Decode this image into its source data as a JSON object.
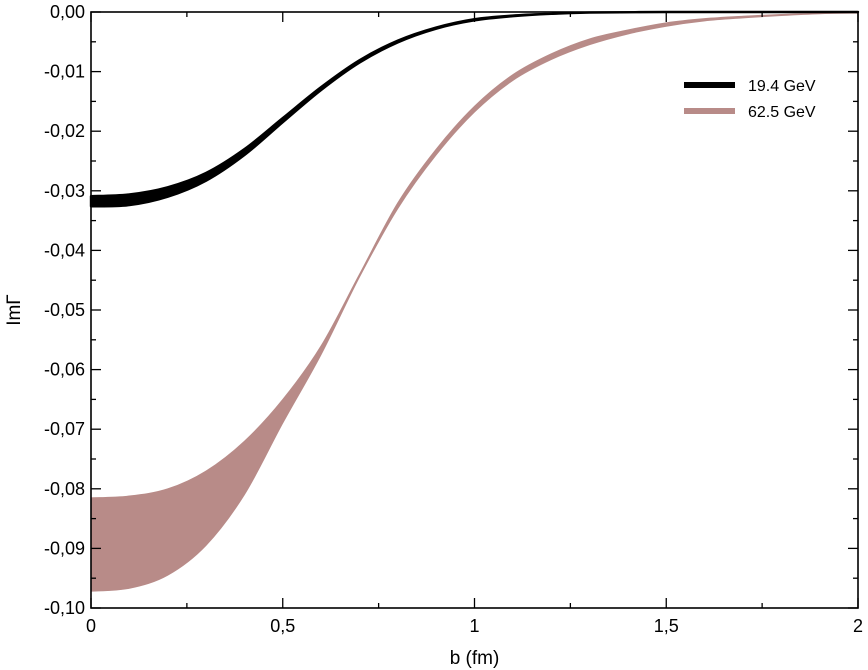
{
  "chart_data": {
    "type": "area",
    "xlabel": "b (fm)",
    "ylabel": "ImΓ",
    "xlim": [
      0,
      2
    ],
    "ylim": [
      -0.1,
      0.0
    ],
    "grid": false,
    "legend_position": "top-right",
    "x_ticks": [
      0,
      0.5,
      1,
      1.5,
      2
    ],
    "x_tick_labels": [
      "0",
      "0,5",
      "1",
      "1,5",
      "2"
    ],
    "y_ticks": [
      0.0,
      -0.01,
      -0.02,
      -0.03,
      -0.04,
      -0.05,
      -0.06,
      -0.07,
      -0.08,
      -0.09,
      -0.1
    ],
    "y_tick_labels": [
      "0,00",
      "-0,01",
      "-0,02",
      "-0,03",
      "-0,04",
      "-0,05",
      "-0,06",
      "-0,07",
      "-0,08",
      "-0,09",
      "-0,10"
    ],
    "series": [
      {
        "name": "19.4 GeV",
        "color": "#000000",
        "x": [
          0,
          0.1,
          0.2,
          0.3,
          0.4,
          0.5,
          0.6,
          0.7,
          0.8,
          0.9,
          1.0,
          1.1,
          1.2,
          1.3,
          1.5,
          1.7,
          2.0
        ],
        "upper": [
          -0.0309,
          -0.0306,
          -0.0294,
          -0.027,
          -0.023,
          -0.0178,
          -0.0126,
          -0.0081,
          -0.0048,
          -0.0026,
          -0.0012,
          -0.0006,
          -0.0003,
          -0.0001,
          0.0,
          0.0,
          0.0
        ],
        "lower": [
          -0.0326,
          -0.0324,
          -0.031,
          -0.0283,
          -0.024,
          -0.0185,
          -0.0131,
          -0.0085,
          -0.0051,
          -0.0028,
          -0.0014,
          -0.0007,
          -0.0003,
          -0.0001,
          0.0,
          0.0,
          0.0
        ]
      },
      {
        "name": "62.5 GeV",
        "color": "#b88b88",
        "x": [
          0,
          0.1,
          0.2,
          0.3,
          0.4,
          0.5,
          0.6,
          0.7,
          0.8,
          0.9,
          1.0,
          1.1,
          1.2,
          1.3,
          1.4,
          1.5,
          1.6,
          1.7,
          1.8,
          1.9,
          2.0
        ],
        "upper": [
          -0.0815,
          -0.0812,
          -0.08,
          -0.077,
          -0.072,
          -0.065,
          -0.056,
          -0.044,
          -0.032,
          -0.023,
          -0.0158,
          -0.0105,
          -0.007,
          -0.0045,
          -0.003,
          -0.0018,
          -0.0011,
          -0.0007,
          -0.0004,
          -0.0002,
          -0.0001
        ],
        "lower": [
          -0.0972,
          -0.0967,
          -0.0945,
          -0.0895,
          -0.081,
          -0.069,
          -0.0575,
          -0.0445,
          -0.033,
          -0.024,
          -0.0168,
          -0.0115,
          -0.008,
          -0.0055,
          -0.0037,
          -0.0024,
          -0.0015,
          -0.001,
          -0.0006,
          -0.0003,
          -0.0002
        ]
      }
    ]
  }
}
